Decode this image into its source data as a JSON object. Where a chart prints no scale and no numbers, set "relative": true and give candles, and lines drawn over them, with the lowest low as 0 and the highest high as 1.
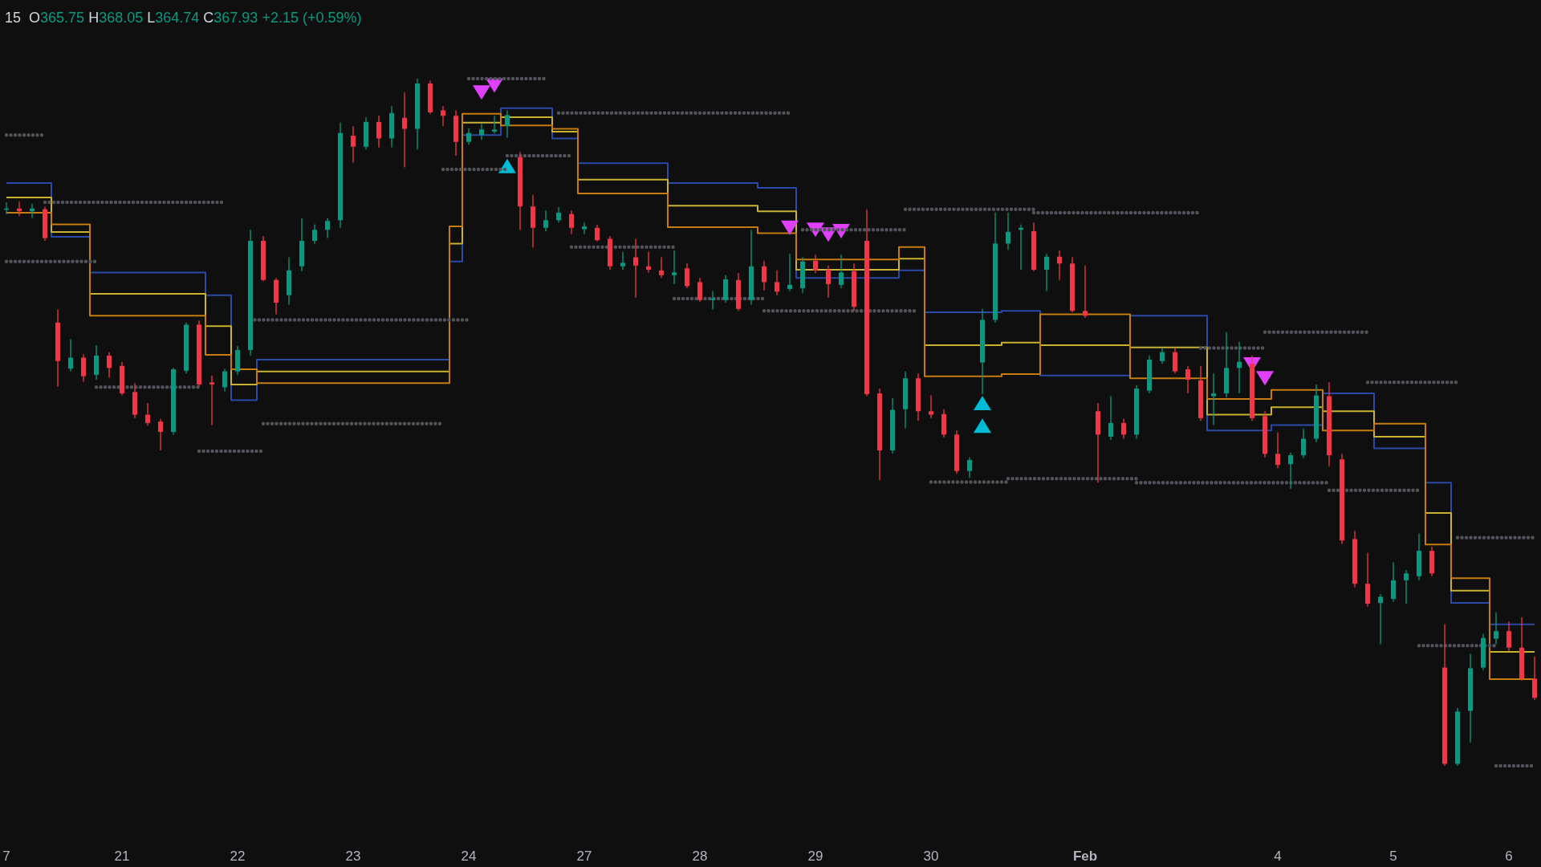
{
  "chart_data": {
    "type": "candlestick",
    "title": "15",
    "subtitle": "O365.75 H368.05 L364.74 C367.93 +2.15 (+0.59%)",
    "relative": true,
    "categories": [
      "7",
      null,
      null,
      null,
      null,
      null,
      null,
      null,
      null,
      "21",
      null,
      null,
      null,
      null,
      null,
      null,
      null,
      null,
      "22",
      null,
      null,
      null,
      null,
      null,
      null,
      null,
      null,
      "23",
      null,
      null,
      null,
      null,
      null,
      null,
      null,
      null,
      "24",
      null,
      null,
      null,
      null,
      null,
      null,
      null,
      null,
      "27",
      null,
      null,
      null,
      null,
      null,
      null,
      null,
      null,
      "28",
      null,
      null,
      null,
      null,
      null,
      null,
      null,
      null,
      "29",
      null,
      null,
      null,
      null,
      null,
      null,
      null,
      null,
      "30",
      null,
      null,
      null,
      null,
      null,
      null,
      null,
      null,
      null,
      null,
      null,
      "Feb",
      null,
      null,
      null,
      null,
      null,
      null,
      null,
      null,
      null,
      null,
      null,
      null,
      null,
      null,
      "4",
      null,
      null,
      null,
      null,
      null,
      null,
      null,
      null,
      "5",
      null,
      null,
      null,
      null,
      null,
      null,
      null,
      null,
      "6",
      null,
      null
    ],
    "ohlc": [
      [
        0.81,
        0.82,
        0.803,
        0.811
      ],
      [
        0.811,
        0.821,
        0.8,
        0.807
      ],
      [
        0.807,
        0.818,
        0.797,
        0.811
      ],
      [
        0.81,
        0.814,
        0.764,
        0.768
      ],
      [
        0.645,
        0.664,
        0.552,
        0.589
      ],
      [
        0.578,
        0.621,
        0.574,
        0.594
      ],
      [
        0.594,
        0.599,
        0.559,
        0.567
      ],
      [
        0.569,
        0.612,
        0.562,
        0.597
      ],
      [
        0.597,
        0.602,
        0.565,
        0.579
      ],
      [
        0.582,
        0.588,
        0.539,
        0.542
      ],
      [
        0.544,
        0.557,
        0.506,
        0.511
      ],
      [
        0.511,
        0.528,
        0.495,
        0.499
      ],
      [
        0.501,
        0.505,
        0.459,
        0.486
      ],
      [
        0.486,
        0.579,
        0.482,
        0.577
      ],
      [
        0.575,
        0.645,
        0.571,
        0.642
      ],
      [
        0.642,
        0.648,
        0.552,
        0.555
      ],
      [
        0.558,
        0.568,
        0.496,
        0.555
      ],
      [
        0.551,
        0.578,
        0.545,
        0.574
      ],
      [
        0.574,
        0.611,
        0.569,
        0.605
      ],
      [
        0.605,
        0.78,
        0.597,
        0.764
      ],
      [
        0.764,
        0.771,
        0.705,
        0.707
      ],
      [
        0.707,
        0.71,
        0.657,
        0.674
      ],
      [
        0.685,
        0.74,
        0.671,
        0.721
      ],
      [
        0.727,
        0.797,
        0.72,
        0.764
      ],
      [
        0.764,
        0.788,
        0.76,
        0.78
      ],
      [
        0.78,
        0.797,
        0.768,
        0.793
      ],
      [
        0.794,
        0.936,
        0.783,
        0.921
      ],
      [
        0.917,
        0.931,
        0.878,
        0.901
      ],
      [
        0.901,
        0.944,
        0.897,
        0.937
      ],
      [
        0.937,
        0.946,
        0.9,
        0.913
      ],
      [
        0.913,
        0.96,
        0.9,
        0.95
      ],
      [
        0.943,
        0.98,
        0.871,
        0.927
      ],
      [
        0.927,
        1.0,
        0.897,
        0.993
      ],
      [
        0.993,
        0.997,
        0.949,
        0.951
      ],
      [
        0.954,
        0.96,
        0.931,
        0.946
      ],
      [
        0.946,
        0.954,
        0.888,
        0.908
      ],
      [
        0.908,
        0.928,
        0.904,
        0.921
      ],
      [
        0.918,
        0.934,
        0.911,
        0.926
      ],
      [
        0.923,
        0.946,
        0.92,
        0.926
      ],
      [
        0.931,
        0.954,
        0.914,
        0.947
      ],
      [
        0.886,
        0.893,
        0.78,
        0.814
      ],
      [
        0.814,
        0.831,
        0.754,
        0.783
      ],
      [
        0.783,
        0.808,
        0.778,
        0.794
      ],
      [
        0.794,
        0.813,
        0.791,
        0.805
      ],
      [
        0.803,
        0.808,
        0.774,
        0.783
      ],
      [
        0.781,
        0.791,
        0.774,
        0.785
      ],
      [
        0.783,
        0.787,
        0.763,
        0.765
      ],
      [
        0.767,
        0.771,
        0.722,
        0.727
      ],
      [
        0.727,
        0.748,
        0.722,
        0.732
      ],
      [
        0.74,
        0.767,
        0.681,
        0.728
      ],
      [
        0.727,
        0.748,
        0.718,
        0.722
      ],
      [
        0.721,
        0.74,
        0.71,
        0.714
      ],
      [
        0.714,
        0.75,
        0.701,
        0.718
      ],
      [
        0.724,
        0.731,
        0.695,
        0.698
      ],
      [
        0.704,
        0.71,
        0.675,
        0.678
      ],
      [
        0.678,
        0.691,
        0.664,
        0.68
      ],
      [
        0.678,
        0.714,
        0.674,
        0.708
      ],
      [
        0.707,
        0.717,
        0.662,
        0.665
      ],
      [
        0.678,
        0.78,
        0.671,
        0.727
      ],
      [
        0.727,
        0.735,
        0.692,
        0.704
      ],
      [
        0.704,
        0.721,
        0.685,
        0.69
      ],
      [
        0.694,
        0.745,
        0.691,
        0.7
      ],
      [
        0.695,
        0.74,
        0.688,
        0.734
      ],
      [
        0.735,
        0.744,
        0.717,
        0.721
      ],
      [
        0.722,
        0.728,
        0.681,
        0.701
      ],
      [
        0.7,
        0.744,
        0.695,
        0.718
      ],
      [
        0.72,
        0.731,
        0.662,
        0.668
      ],
      [
        0.764,
        0.81,
        0.538,
        0.541
      ],
      [
        0.542,
        0.549,
        0.416,
        0.459
      ],
      [
        0.459,
        0.535,
        0.454,
        0.518
      ],
      [
        0.519,
        0.574,
        0.491,
        0.564
      ],
      [
        0.564,
        0.571,
        0.502,
        0.516
      ],
      [
        0.516,
        0.539,
        0.506,
        0.511
      ],
      [
        0.512,
        0.519,
        0.478,
        0.482
      ],
      [
        0.482,
        0.488,
        0.425,
        0.429
      ],
      [
        0.429,
        0.449,
        0.419,
        0.445
      ],
      [
        0.587,
        0.665,
        0.541,
        0.649
      ],
      [
        0.649,
        0.805,
        0.645,
        0.76
      ],
      [
        0.76,
        0.805,
        0.751,
        0.777
      ],
      [
        0.78,
        0.788,
        0.722,
        0.783
      ],
      [
        0.778,
        0.791,
        0.72,
        0.722
      ],
      [
        0.722,
        0.745,
        0.691,
        0.741
      ],
      [
        0.741,
        0.75,
        0.707,
        0.731
      ],
      [
        0.731,
        0.74,
        0.66,
        0.662
      ],
      [
        0.662,
        0.728,
        0.652,
        0.655
      ],
      [
        0.516,
        0.528,
        0.412,
        0.482
      ],
      [
        0.479,
        0.538,
        0.474,
        0.499
      ],
      [
        0.499,
        0.505,
        0.476,
        0.482
      ],
      [
        0.482,
        0.554,
        0.476,
        0.549
      ],
      [
        0.546,
        0.597,
        0.542,
        0.591
      ],
      [
        0.589,
        0.608,
        0.585,
        0.602
      ],
      [
        0.602,
        0.608,
        0.571,
        0.574
      ],
      [
        0.577,
        0.582,
        0.542,
        0.562
      ],
      [
        0.561,
        0.582,
        0.502,
        0.506
      ],
      [
        0.538,
        0.571,
        0.496,
        0.542
      ],
      [
        0.542,
        0.631,
        0.536,
        0.579
      ],
      [
        0.579,
        0.617,
        0.542,
        0.588
      ],
      [
        0.585,
        0.597,
        0.502,
        0.506
      ],
      [
        0.509,
        0.516,
        0.449,
        0.454
      ],
      [
        0.454,
        0.485,
        0.433,
        0.438
      ],
      [
        0.439,
        0.456,
        0.403,
        0.452
      ],
      [
        0.452,
        0.491,
        0.448,
        0.476
      ],
      [
        0.476,
        0.555,
        0.471,
        0.539
      ],
      [
        0.538,
        0.558,
        0.436,
        0.452
      ],
      [
        0.446,
        0.454,
        0.323,
        0.328
      ],
      [
        0.33,
        0.342,
        0.26,
        0.265
      ],
      [
        0.265,
        0.31,
        0.232,
        0.236
      ],
      [
        0.237,
        0.25,
        0.177,
        0.246
      ],
      [
        0.243,
        0.296,
        0.239,
        0.27
      ],
      [
        0.27,
        0.285,
        0.236,
        0.28
      ],
      [
        0.276,
        0.338,
        0.27,
        0.313
      ],
      [
        0.313,
        0.319,
        0.276,
        0.28
      ],
      [
        0.143,
        0.206,
        0.0,
        0.003
      ],
      [
        0.003,
        0.084,
        0.0,
        0.079
      ],
      [
        0.08,
        0.163,
        0.034,
        0.142
      ],
      [
        0.143,
        0.192,
        0.139,
        0.186
      ],
      [
        0.185,
        0.223,
        0.177,
        0.196
      ],
      [
        0.196,
        0.21,
        0.167,
        0.172
      ],
      [
        0.172,
        0.216,
        0.124,
        0.127
      ],
      [
        0.127,
        0.159,
        0.096,
        0.099
      ]
    ],
    "colors": [
      "#089981",
      "#f23645",
      "#089981",
      "#f23645",
      "#f23645",
      "#089981",
      "#f23645",
      "#089981",
      "#f23645",
      "#f23645",
      "#f23645",
      "#f23645",
      "#f23645",
      "#089981",
      "#089981",
      "#f23645",
      "#f23645",
      "#089981",
      "#089981",
      "#089981",
      "#f23645",
      "#f23645",
      "#089981",
      "#089981",
      "#089981",
      "#089981",
      "#089981",
      "#f23645",
      "#089981",
      "#f23645",
      "#089981",
      "#f23645",
      "#089981",
      "#f23645",
      "#f23645",
      "#f23645",
      "#089981",
      "#089981",
      "#089981",
      "#089981",
      "#f23645",
      "#f23645",
      "#089981",
      "#089981",
      "#f23645",
      "#089981",
      "#f23645",
      "#f23645",
      "#089981",
      "#f23645",
      "#f23645",
      "#f23645",
      "#089981",
      "#f23645",
      "#f23645",
      "#089981",
      "#089981",
      "#f23645",
      "#089981",
      "#f23645",
      "#f23645",
      "#089981",
      "#089981",
      "#f23645",
      "#f23645",
      "#089981",
      "#f23645",
      "#f23645",
      "#f23645",
      "#089981",
      "#089981",
      "#f23645",
      "#f23645",
      "#f23645",
      "#f23645",
      "#089981",
      "#089981",
      "#089981",
      "#089981",
      "#089981",
      "#f23645",
      "#089981",
      "#f23645",
      "#f23645",
      "#f23645",
      "#f23645",
      "#089981",
      "#f23645",
      "#089981",
      "#089981",
      "#089981",
      "#f23645",
      "#f23645",
      "#f23645",
      "#089981",
      "#089981",
      "#089981",
      "#f23645",
      "#f23645",
      "#f23645",
      "#089981",
      "#089981",
      "#089981",
      "#f23645",
      "#f23645",
      "#f23645",
      "#f23645",
      "#089981",
      "#089981",
      "#089981",
      "#089981",
      "#f23645",
      "#f23645",
      "#089981",
      "#089981",
      "#089981",
      "#089981",
      "#f23645",
      "#f23645",
      "#f23645"
    ],
    "series": [
      {
        "type": "line",
        "color": "#505359",
        "line_style": "dotted",
        "values": [
          0.918,
          0.918,
          0.918,
          0.918,
          null,
          null,
          null,
          0.551,
          0.551,
          0.551,
          0.551,
          0.551,
          0.551,
          0.551,
          0.551,
          0.551,
          null,
          null,
          null,
          null,
          0.498,
          0.498,
          0.498,
          0.498,
          0.498,
          0.498,
          0.498,
          0.498,
          0.498,
          0.498,
          0.498,
          0.498,
          0.498,
          0.498,
          0.498,
          null,
          1.0,
          1.0,
          1.0,
          1.0,
          1.0,
          1.0,
          1.0,
          null,
          0.755,
          0.755,
          0.755,
          0.755,
          0.755,
          0.755,
          0.755,
          0.755,
          0.755,
          null,
          null,
          null,
          null,
          null,
          null,
          0.662,
          0.662,
          0.662,
          0.662,
          0.662,
          0.662,
          0.662,
          0.662,
          0.662,
          0.662,
          0.662,
          0.662,
          0.662,
          null,
          null,
          null,
          null,
          null,
          null,
          0.418,
          0.418,
          0.418,
          0.418,
          0.418,
          0.418,
          0.418,
          0.418,
          0.418,
          0.418,
          0.418,
          null,
          null,
          null,
          null,
          0.608,
          0.608,
          0.608,
          0.608,
          0.608,
          0.608,
          null,
          null,
          null,
          null,
          0.401,
          0.401,
          0.401,
          0.401,
          0.401,
          0.401,
          0.401,
          0.401,
          null,
          null,
          0.332,
          0.332,
          0.332,
          0.332,
          0.332,
          0.332,
          0.332
        ]
      },
      {
        "type": "line",
        "color": "#505359",
        "line_style": "dotted",
        "values": [
          0.734,
          0.734,
          0.734,
          0.734,
          0.734,
          0.734,
          0.734,
          0.734,
          null,
          null,
          null,
          null,
          null,
          null,
          null,
          0.458,
          0.458,
          0.458,
          0.458,
          0.458,
          0.458,
          null,
          null,
          null,
          null,
          null,
          null,
          null,
          null,
          null,
          null,
          null,
          null,
          null,
          0.868,
          0.868,
          0.868,
          0.868,
          0.868,
          0.868,
          null,
          null,
          null,
          0.95,
          0.95,
          0.95,
          0.95,
          0.95,
          0.95,
          0.95,
          0.95,
          0.95,
          0.95,
          0.95,
          0.95,
          0.95,
          0.95,
          0.95,
          0.95,
          0.95,
          0.95,
          0.95,
          null,
          null,
          null,
          null,
          null,
          null,
          null,
          null,
          0.81,
          0.81,
          0.81,
          0.81,
          0.81,
          0.81,
          0.81,
          0.81,
          0.81,
          0.81,
          0.81,
          null,
          null,
          null,
          null,
          null,
          null,
          null,
          0.412,
          0.412,
          0.412,
          0.412,
          0.412,
          0.412,
          0.412,
          0.412,
          0.412,
          0.412,
          0.412,
          0.412,
          0.412,
          0.412,
          0.412,
          0.412,
          null,
          null,
          0.558,
          0.558,
          0.558,
          0.558,
          0.558,
          0.558,
          0.558,
          0.558,
          null,
          null,
          0.0,
          0.0,
          0.0,
          0.0
        ]
      },
      {
        "type": "line",
        "color": "#505359",
        "line_style": "dotted",
        "values": [
          null,
          null,
          null,
          0.82,
          0.82,
          0.82,
          0.82,
          0.82,
          0.82,
          0.82,
          0.82,
          0.82,
          0.82,
          0.82,
          0.82,
          0.82,
          0.82,
          0.82,
          null,
          0.649,
          0.649,
          0.649,
          0.649,
          0.649,
          0.649,
          0.649,
          0.649,
          0.649,
          0.649,
          0.649,
          0.649,
          0.649,
          0.649,
          0.649,
          0.649,
          0.649,
          0.649,
          null,
          null,
          0.888,
          0.888,
          0.888,
          0.888,
          0.888,
          0.888,
          null,
          null,
          null,
          null,
          null,
          null,
          null,
          0.68,
          0.68,
          0.68,
          0.68,
          0.68,
          0.68,
          0.68,
          0.68,
          null,
          null,
          0.78,
          0.78,
          0.78,
          0.78,
          0.78,
          0.78,
          0.78,
          0.78,
          0.78,
          null,
          0.413,
          0.413,
          0.413,
          0.413,
          0.413,
          0.413,
          0.413,
          null,
          0.805,
          0.805,
          0.805,
          0.805,
          0.805,
          0.805,
          0.805,
          0.805,
          0.805,
          0.805,
          0.805,
          0.805,
          0.805,
          0.805,
          null,
          null,
          null,
          null,
          0.631,
          0.631,
          0.631,
          0.631,
          0.631,
          0.631,
          0.631,
          0.631,
          0.631,
          null,
          null,
          null,
          0.175,
          0.175,
          0.175,
          0.175,
          0.175,
          0.175,
          0.175,
          null,
          null,
          null
        ]
      },
      {
        "type": "step",
        "color": "#2b4aa8",
        "values": [
          0.848,
          0.848,
          0.848,
          0.848,
          0.77,
          0.77,
          0.77,
          0.718,
          0.718,
          0.718,
          0.718,
          0.718,
          0.718,
          0.718,
          0.718,
          0.718,
          0.685,
          0.685,
          0.532,
          0.532,
          0.591,
          0.591,
          0.591,
          0.591,
          0.591,
          0.591,
          0.591,
          0.591,
          0.591,
          0.591,
          0.591,
          0.591,
          0.591,
          0.591,
          0.591,
          0.734,
          0.918,
          0.918,
          0.918,
          0.957,
          0.957,
          0.957,
          0.957,
          0.913,
          0.913,
          0.877,
          0.877,
          0.877,
          0.877,
          0.877,
          0.877,
          0.877,
          0.848,
          0.848,
          0.848,
          0.848,
          0.848,
          0.848,
          0.848,
          0.841,
          0.841,
          0.841,
          0.71,
          0.71,
          0.71,
          0.71,
          0.71,
          0.71,
          0.71,
          0.71,
          0.721,
          0.721,
          0.66,
          0.66,
          0.66,
          0.66,
          0.66,
          0.66,
          0.662,
          0.662,
          0.662,
          0.568,
          0.568,
          0.568,
          0.568,
          0.568,
          0.568,
          0.568,
          0.655,
          0.655,
          0.655,
          0.655,
          0.655,
          0.655,
          0.488,
          0.488,
          0.488,
          0.488,
          0.488,
          0.496,
          0.496,
          0.496,
          0.496,
          0.542,
          0.542,
          0.542,
          0.542,
          0.462,
          0.462,
          0.462,
          0.462,
          0.412,
          0.412,
          0.237,
          0.237,
          0.237,
          0.206,
          0.206,
          0.206,
          0.206
        ]
      },
      {
        "type": "step",
        "color": "#c9b232",
        "values": [
          0.827,
          0.827,
          0.827,
          0.827,
          0.777,
          0.777,
          0.777,
          0.687,
          0.687,
          0.687,
          0.687,
          0.687,
          0.687,
          0.687,
          0.687,
          0.687,
          0.64,
          0.64,
          0.555,
          0.555,
          0.574,
          0.574,
          0.574,
          0.574,
          0.574,
          0.574,
          0.574,
          0.574,
          0.574,
          0.574,
          0.574,
          0.574,
          0.574,
          0.574,
          0.574,
          0.76,
          0.936,
          0.936,
          0.936,
          0.944,
          0.944,
          0.944,
          0.944,
          0.923,
          0.923,
          0.853,
          0.853,
          0.853,
          0.853,
          0.853,
          0.853,
          0.853,
          0.815,
          0.815,
          0.815,
          0.815,
          0.815,
          0.815,
          0.815,
          0.807,
          0.807,
          0.807,
          0.722,
          0.722,
          0.722,
          0.722,
          0.722,
          0.722,
          0.722,
          0.722,
          0.738,
          0.738,
          0.612,
          0.612,
          0.612,
          0.612,
          0.612,
          0.612,
          0.616,
          0.616,
          0.616,
          0.612,
          0.612,
          0.612,
          0.612,
          0.612,
          0.612,
          0.612,
          0.609,
          0.609,
          0.609,
          0.609,
          0.609,
          0.609,
          0.511,
          0.511,
          0.511,
          0.511,
          0.511,
          0.522,
          0.522,
          0.522,
          0.522,
          0.516,
          0.516,
          0.516,
          0.516,
          0.479,
          0.479,
          0.479,
          0.479,
          0.368,
          0.368,
          0.255,
          0.255,
          0.255,
          0.166,
          0.166,
          0.166,
          0.166
        ]
      },
      {
        "type": "step",
        "color": "#c47d0e",
        "values": [
          0.805,
          0.805,
          0.805,
          0.805,
          0.788,
          0.788,
          0.788,
          0.655,
          0.655,
          0.655,
          0.655,
          0.655,
          0.655,
          0.655,
          0.655,
          0.655,
          0.598,
          0.598,
          0.577,
          0.577,
          0.557,
          0.557,
          0.557,
          0.557,
          0.557,
          0.557,
          0.557,
          0.557,
          0.557,
          0.557,
          0.557,
          0.557,
          0.557,
          0.557,
          0.557,
          0.785,
          0.949,
          0.949,
          0.949,
          0.932,
          0.932,
          0.932,
          0.932,
          0.927,
          0.927,
          0.833,
          0.833,
          0.833,
          0.833,
          0.833,
          0.833,
          0.833,
          0.784,
          0.784,
          0.784,
          0.784,
          0.784,
          0.784,
          0.784,
          0.775,
          0.775,
          0.775,
          0.737,
          0.737,
          0.737,
          0.737,
          0.737,
          0.737,
          0.737,
          0.737,
          0.755,
          0.755,
          0.567,
          0.567,
          0.567,
          0.567,
          0.567,
          0.567,
          0.57,
          0.57,
          0.57,
          0.657,
          0.657,
          0.657,
          0.657,
          0.657,
          0.657,
          0.657,
          0.564,
          0.564,
          0.564,
          0.564,
          0.564,
          0.564,
          0.534,
          0.534,
          0.534,
          0.534,
          0.534,
          0.547,
          0.547,
          0.547,
          0.547,
          0.488,
          0.488,
          0.488,
          0.488,
          0.498,
          0.498,
          0.498,
          0.498,
          0.322,
          0.322,
          0.273,
          0.273,
          0.273,
          0.126,
          0.126,
          0.126,
          0.126
        ]
      },
      {
        "type": "scatter",
        "color": "#e040fb",
        "marker": "triangle-down",
        "values": [
          null,
          null,
          null,
          null,
          null,
          null,
          null,
          null,
          null,
          null,
          null,
          null,
          null,
          null,
          null,
          null,
          null,
          null,
          null,
          null,
          null,
          null,
          null,
          null,
          null,
          null,
          null,
          null,
          null,
          null,
          null,
          null,
          null,
          null,
          null,
          null,
          null,
          0.98,
          0.99,
          null,
          null,
          null,
          null,
          null,
          null,
          null,
          null,
          null,
          null,
          null,
          null,
          null,
          null,
          null,
          null,
          null,
          null,
          null,
          null,
          null,
          null,
          0.783,
          null,
          0.78,
          0.773,
          0.778,
          null,
          null,
          null,
          null,
          null,
          null,
          null,
          null,
          null,
          null,
          null,
          null,
          null,
          null,
          null,
          null,
          null,
          null,
          null,
          null,
          null,
          null,
          null,
          null,
          null,
          null,
          null,
          null,
          null,
          null,
          null,
          0.584,
          0.564,
          null,
          null,
          null,
          null,
          null,
          null,
          null,
          null,
          null,
          null,
          null,
          null,
          null,
          null,
          null,
          null,
          null,
          null,
          null,
          null,
          null
        ]
      },
      {
        "type": "scatter",
        "color": "#00bcd4",
        "marker": "triangle",
        "values": [
          null,
          null,
          null,
          null,
          null,
          null,
          null,
          null,
          null,
          null,
          null,
          null,
          null,
          null,
          null,
          null,
          null,
          null,
          null,
          null,
          null,
          null,
          null,
          null,
          null,
          null,
          null,
          null,
          null,
          null,
          null,
          null,
          null,
          null,
          null,
          null,
          null,
          null,
          null,
          0.873,
          null,
          null,
          null,
          null,
          null,
          null,
          null,
          null,
          null,
          null,
          null,
          null,
          null,
          null,
          null,
          null,
          null,
          null,
          null,
          null,
          null,
          null,
          null,
          null,
          null,
          null,
          null,
          null,
          null,
          null,
          null,
          null,
          null,
          null,
          null,
          null,
          0.528,
          null,
          null,
          null,
          null,
          null,
          null,
          null,
          null,
          null,
          null,
          null,
          null,
          null,
          null,
          null,
          null,
          null,
          null,
          null,
          null,
          null,
          null,
          null,
          null,
          null,
          null,
          null,
          null,
          null,
          null,
          null,
          null,
          null,
          null,
          null,
          null,
          null,
          null,
          null,
          null,
          null,
          null,
          null
        ]
      },
      {
        "type": "scatter",
        "color": "#00bcd4",
        "marker": "triangle",
        "values": [
          null,
          null,
          null,
          null,
          null,
          null,
          null,
          null,
          null,
          null,
          null,
          null,
          null,
          null,
          null,
          null,
          null,
          null,
          null,
          null,
          null,
          null,
          null,
          null,
          null,
          null,
          null,
          null,
          null,
          null,
          null,
          null,
          null,
          null,
          null,
          null,
          null,
          null,
          null,
          null,
          null,
          null,
          null,
          null,
          null,
          null,
          null,
          null,
          null,
          null,
          null,
          null,
          null,
          null,
          null,
          null,
          null,
          null,
          null,
          null,
          null,
          null,
          null,
          null,
          null,
          null,
          null,
          null,
          null,
          null,
          null,
          null,
          null,
          null,
          null,
          null,
          0.495,
          null,
          null,
          null,
          null,
          null,
          null,
          null,
          null,
          null,
          null,
          null,
          null,
          null,
          null,
          null,
          null,
          null,
          null,
          null,
          null,
          null,
          null,
          null,
          null,
          null,
          null,
          null,
          null,
          null,
          null,
          null,
          null,
          null,
          null,
          null,
          null,
          null,
          null,
          null,
          null,
          null,
          null,
          null
        ]
      }
    ]
  }
}
